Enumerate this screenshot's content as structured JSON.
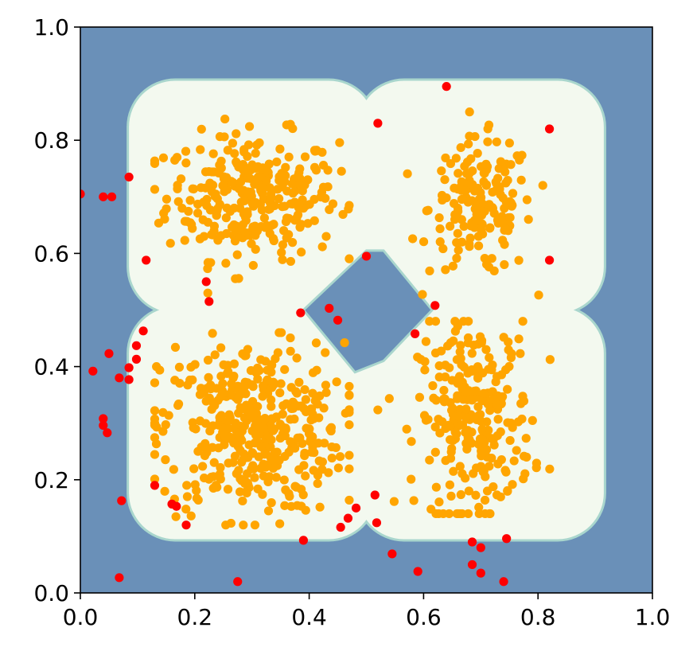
{
  "chart_data": {
    "type": "scatter",
    "title": "",
    "xlabel": "",
    "ylabel": "",
    "xlim": [
      0.0,
      1.0
    ],
    "ylim": [
      0.0,
      1.0
    ],
    "grid": false,
    "legend": "none",
    "x_ticks": [
      "0.0",
      "0.2",
      "0.4",
      "0.6",
      "0.8",
      "1.0"
    ],
    "y_ticks": [
      "0.0",
      "0.2",
      "0.4",
      "0.6",
      "0.8",
      "1.0"
    ],
    "colors": {
      "background_region": "#6a90b8",
      "decision_region": "#f3f9ef",
      "region_edge": "#a9d6cd",
      "inlier": "#ffa500",
      "outlier": "#ff0000"
    },
    "decision_region_centers": [
      [
        0.3,
        0.7
      ],
      [
        0.7,
        0.7
      ],
      [
        0.3,
        0.3
      ],
      [
        0.7,
        0.3
      ]
    ],
    "clusters": [
      {
        "center": [
          0.3,
          0.7
        ],
        "spread": [
          0.075,
          0.055
        ],
        "count": 300
      },
      {
        "center": [
          0.7,
          0.68
        ],
        "spread": [
          0.045,
          0.06
        ],
        "count": 170
      },
      {
        "center": [
          0.3,
          0.29
        ],
        "spread": [
          0.08,
          0.075
        ],
        "count": 420
      },
      {
        "center": [
          0.69,
          0.31
        ],
        "spread": [
          0.05,
          0.085
        ],
        "count": 270
      }
    ],
    "outliers": [
      [
        0.64,
        0.895
      ],
      [
        0.52,
        0.83
      ],
      [
        0.82,
        0.82
      ],
      [
        0.085,
        0.735
      ],
      [
        0.0,
        0.705
      ],
      [
        0.04,
        0.7
      ],
      [
        0.055,
        0.7
      ],
      [
        0.115,
        0.588
      ],
      [
        0.5,
        0.595
      ],
      [
        0.82,
        0.588
      ],
      [
        0.22,
        0.55
      ],
      [
        0.225,
        0.515
      ],
      [
        0.62,
        0.508
      ],
      [
        0.435,
        0.503
      ],
      [
        0.385,
        0.495
      ],
      [
        0.45,
        0.482
      ],
      [
        0.11,
        0.463
      ],
      [
        0.585,
        0.458
      ],
      [
        0.098,
        0.437
      ],
      [
        0.05,
        0.423
      ],
      [
        0.098,
        0.413
      ],
      [
        0.085,
        0.398
      ],
      [
        0.022,
        0.392
      ],
      [
        0.068,
        0.38
      ],
      [
        0.085,
        0.377
      ],
      [
        0.04,
        0.308
      ],
      [
        0.04,
        0.296
      ],
      [
        0.047,
        0.283
      ],
      [
        0.13,
        0.19
      ],
      [
        0.515,
        0.173
      ],
      [
        0.072,
        0.163
      ],
      [
        0.16,
        0.157
      ],
      [
        0.168,
        0.153
      ],
      [
        0.482,
        0.15
      ],
      [
        0.468,
        0.132
      ],
      [
        0.518,
        0.124
      ],
      [
        0.185,
        0.12
      ],
      [
        0.455,
        0.116
      ],
      [
        0.745,
        0.096
      ],
      [
        0.39,
        0.093
      ],
      [
        0.685,
        0.09
      ],
      [
        0.7,
        0.08
      ],
      [
        0.545,
        0.069
      ],
      [
        0.685,
        0.05
      ],
      [
        0.59,
        0.038
      ],
      [
        0.7,
        0.035
      ],
      [
        0.068,
        0.027
      ],
      [
        0.275,
        0.02
      ],
      [
        0.74,
        0.02
      ]
    ]
  }
}
